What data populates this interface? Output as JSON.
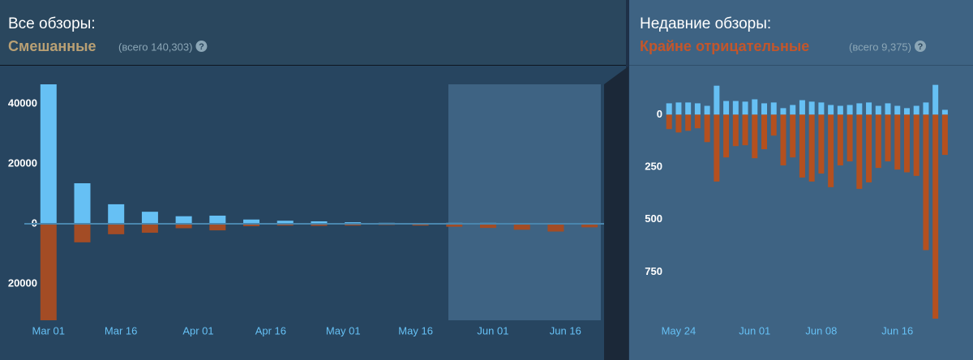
{
  "header_left": {
    "title": "Все обзоры:",
    "rating": "Смешанные",
    "count": "(всего 140,303)",
    "help": "?"
  },
  "header_right": {
    "title": "Недавние обзоры:",
    "rating": "Крайне отрицательные",
    "count": "(всего 9,375)",
    "help": "?"
  },
  "chart_data": [
    {
      "type": "bar",
      "x": [
        0,
        7,
        14,
        21,
        28,
        35,
        42,
        49,
        56,
        63,
        70,
        77,
        84,
        91,
        98,
        105,
        112
      ],
      "xlim": [
        -5,
        115
      ],
      "xticks": [
        {
          "value": 0,
          "label": "Mar 01"
        },
        {
          "value": 15,
          "label": "Mar 16"
        },
        {
          "value": 31,
          "label": "Apr 01"
        },
        {
          "value": 46,
          "label": "Apr 16"
        },
        {
          "value": 61,
          "label": "May 01"
        },
        {
          "value": 76,
          "label": "May 16"
        },
        {
          "value": 92,
          "label": "Jun 01"
        },
        {
          "value": 107,
          "label": "Jun 16"
        }
      ],
      "ylim": [
        -32200,
        46500
      ],
      "yticks": [
        40000,
        20000,
        0,
        {
          "value": -20000,
          "label": "20000"
        }
      ],
      "series": [
        {
          "color": "#66c0f4",
          "values": [
            46500,
            13500,
            6500,
            4000,
            2500,
            2700,
            1400,
            1000,
            800,
            500,
            300,
            200,
            300,
            300,
            200,
            200,
            200
          ]
        },
        {
          "color": "#a34c25",
          "values": [
            -32200,
            -6200,
            -3500,
            -3000,
            -1500,
            -2200,
            -800,
            -600,
            -700,
            -600,
            -400,
            -600,
            -1000,
            -1400,
            -2000,
            -2600,
            -1200
          ]
        }
      ]
    },
    {
      "type": "bar",
      "x": [
        -1,
        0,
        1,
        2,
        3,
        4,
        5,
        6,
        7,
        8,
        9,
        10,
        11,
        12,
        13,
        14,
        15,
        16,
        17,
        18,
        19,
        20,
        21,
        22,
        23,
        24,
        25,
        26,
        27,
        28
      ],
      "xlim": [
        -4,
        29.5
      ],
      "xticks": [
        {
          "value": 0,
          "label": "May 24"
        },
        {
          "value": 8,
          "label": "Jun 01"
        },
        {
          "value": 15,
          "label": "Jun 08"
        },
        {
          "value": 23,
          "label": "Jun 16"
        }
      ],
      "ylim": [
        -1000,
        160
      ],
      "yticks": [
        0,
        {
          "value": -250,
          "label": "250"
        },
        {
          "value": -500,
          "label": "500"
        },
        {
          "value": -750,
          "label": "750"
        }
      ],
      "series": [
        {
          "color": "#66c0f4",
          "values": [
            54,
            58,
            58,
            54,
            42,
            138,
            65,
            65,
            62,
            73,
            54,
            58,
            31,
            46,
            69,
            62,
            58,
            46,
            42,
            46,
            54,
            58,
            42,
            54,
            42,
            31,
            42,
            58,
            142,
            23
          ]
        },
        {
          "color": "#b4501f",
          "values": [
            -69,
            -85,
            -77,
            -65,
            -131,
            -319,
            -204,
            -150,
            -146,
            -208,
            -165,
            -100,
            -242,
            -204,
            -300,
            -319,
            -281,
            -346,
            -242,
            -223,
            -354,
            -323,
            -254,
            -223,
            -262,
            -275,
            -292,
            -646,
            -973,
            -192
          ]
        }
      ]
    }
  ]
}
